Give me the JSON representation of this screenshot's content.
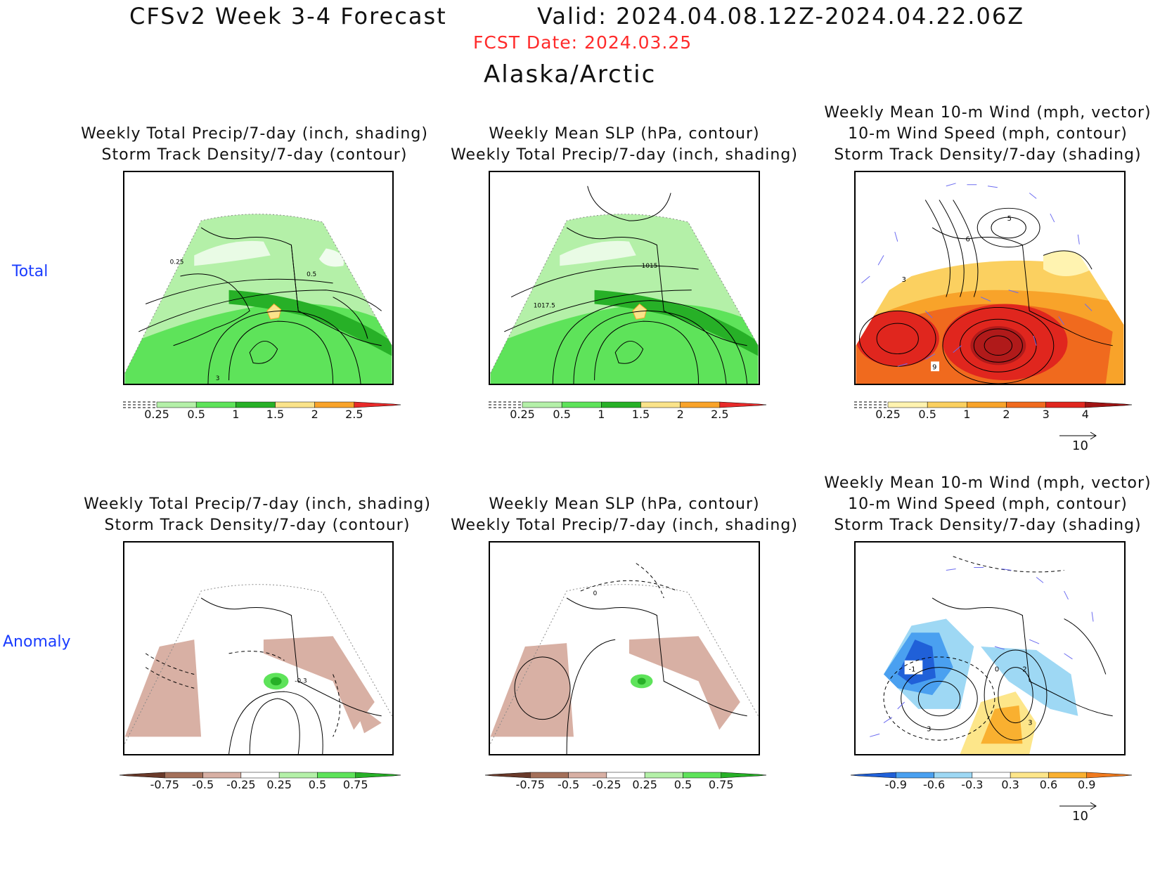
{
  "header": {
    "title": "CFSv2 Week 3-4 Forecast",
    "valid": "Valid: 2024.04.08.12Z-2024.04.22.06Z",
    "fcst_date": "FCST Date: 2024.03.25",
    "region": "Alaska/Arctic"
  },
  "rows": [
    {
      "label": "Total"
    },
    {
      "label": "Anomaly"
    }
  ],
  "panels": {
    "precip_track": {
      "line1": "Weekly Total Precip/7-day (inch, shading)",
      "line2": "Storm Track Density/7-day (contour)"
    },
    "slp_precip": {
      "line1": "Weekly Mean SLP (hPa, contour)",
      "line2": "Weekly Total Precip/7-day (inch, shading)"
    },
    "wind_track": {
      "line1": "Weekly Mean 10-m Wind (mph, vector)",
      "line2": "10-m Wind Speed (mph, contour)",
      "line3": "Storm Track Density/7-day (shading)"
    }
  },
  "contour_labels": {
    "total_precip": [
      "0.25",
      "0.5",
      "3"
    ],
    "total_slp": [
      "1015",
      "1017.5"
    ],
    "total_wind": [
      "5",
      "6",
      "3",
      "9"
    ],
    "anom_precip": [
      "-0.3"
    ],
    "anom_slp": [
      "0"
    ],
    "anom_wind": [
      "-1",
      "0",
      "2",
      "3",
      "3"
    ]
  },
  "colorbars": {
    "total_precip": {
      "ticks": [
        "0.25",
        "0.5",
        "1",
        "1.5",
        "2",
        "2.5"
      ],
      "colors": [
        "#b4f0a8",
        "#5ee35a",
        "#27b027",
        "#fae38a",
        "#f9a32a",
        "#e82a2a"
      ]
    },
    "total_track": {
      "ticks": [
        "0.25",
        "0.5",
        "1",
        "2",
        "3",
        "4"
      ],
      "colors": [
        "#fff3b0",
        "#fbd060",
        "#f8a32a",
        "#f06a1e",
        "#e0261e",
        "#a01414"
      ]
    },
    "anom_precip": {
      "ticks": [
        "-0.75",
        "-0.5",
        "-0.25",
        "0.25",
        "0.5",
        "0.75"
      ],
      "colors": [
        "#6a3a2a",
        "#a4705a",
        "#d8b0a4",
        "#ffffff",
        "#b4f0a8",
        "#5ee35a",
        "#27b027"
      ]
    },
    "anom_track": {
      "ticks": [
        "-0.9",
        "-0.6",
        "-0.3",
        "0.3",
        "0.6",
        "0.9"
      ],
      "colors": [
        "#2060d8",
        "#4aa0f0",
        "#9ed8f4",
        "#ffffff",
        "#fde68a",
        "#f9b030",
        "#f07a1e"
      ]
    }
  },
  "vector_reference": "10",
  "colors": {
    "fcst_date": "#ff2a2a",
    "row_labels": "#1a3cff",
    "wind_vectors": "#6b6bf0"
  }
}
